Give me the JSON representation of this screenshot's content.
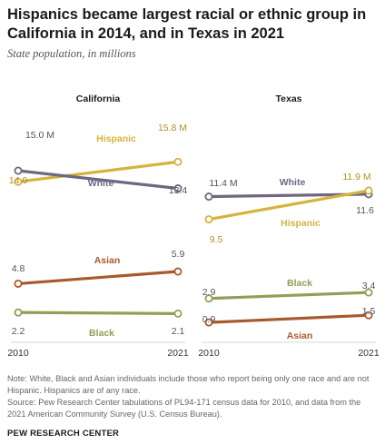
{
  "title": "Hispanics became largest racial or ethnic group in California in 2014, and in Texas in 2021",
  "subtitle": "State population, in millions",
  "notes": [
    "Note: White, Black and Asian individuals include those who report being only one race and are not Hispanic. Hispanics are of any race.",
    "Source: Pew Research Center tabulations of PL94-171 census data for 2010, and data from the 2021 American Community Survey (U.S. Census Bureau)."
  ],
  "brand": "PEW RESEARCH CENTER",
  "colors": {
    "Hispanic": "#d4b43c",
    "White": "#6e6683",
    "Asian": "#a85a2c",
    "Black": "#8fa058"
  },
  "chart_data": [
    {
      "type": "line",
      "title": "California",
      "x": [
        "2010",
        "2021"
      ],
      "series": [
        {
          "name": "Hispanic",
          "values": [
            14.0,
            15.8
          ],
          "labels": [
            "14.0",
            "15.8 M"
          ]
        },
        {
          "name": "White",
          "values": [
            15.0,
            13.4
          ],
          "labels": [
            "15.0 M",
            "13.4"
          ]
        },
        {
          "name": "Asian",
          "values": [
            4.8,
            5.9
          ],
          "labels": [
            "4.8",
            "5.9"
          ]
        },
        {
          "name": "Black",
          "values": [
            2.2,
            2.1
          ],
          "labels": [
            "2.2",
            "2.1"
          ]
        }
      ]
    },
    {
      "type": "line",
      "title": "Texas",
      "x": [
        "2010",
        "2021"
      ],
      "series": [
        {
          "name": "White",
          "values": [
            11.4,
            11.6
          ],
          "labels": [
            "11.4 M",
            "11.6"
          ]
        },
        {
          "name": "Hispanic",
          "values": [
            9.5,
            11.9
          ],
          "labels": [
            "9.5",
            "11.9 M"
          ]
        },
        {
          "name": "Black",
          "values": [
            2.9,
            3.4
          ],
          "labels": [
            "2.9",
            "3.4"
          ]
        },
        {
          "name": "Asian",
          "values": [
            0.9,
            1.5
          ],
          "labels": [
            "0.9",
            "1.5"
          ]
        }
      ]
    }
  ]
}
